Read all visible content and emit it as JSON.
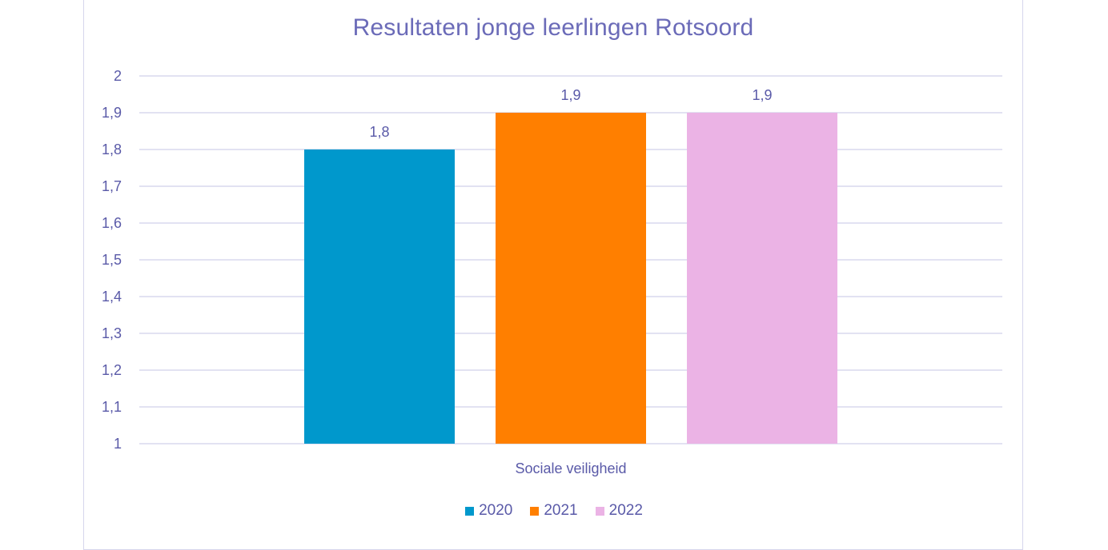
{
  "chart_data": {
    "type": "bar",
    "title": "Resultaten jonge leerlingen Rotsoord",
    "categories": [
      "Sociale veiligheid"
    ],
    "series": [
      {
        "name": "2020",
        "values": [
          1.8
        ],
        "label": "1,8",
        "color": "#0098CC"
      },
      {
        "name": "2021",
        "values": [
          1.9
        ],
        "label": "1,9",
        "color": "#FF7F00"
      },
      {
        "name": "2022",
        "values": [
          1.9
        ],
        "label": "1,9",
        "color": "#EBB3E5"
      }
    ],
    "ylim": [
      1,
      2
    ],
    "yticks": [
      1,
      1.1,
      1.2,
      1.3,
      1.4,
      1.5,
      1.6,
      1.7,
      1.8,
      1.9,
      2
    ],
    "ytick_labels": [
      "1",
      "1,1",
      "1,2",
      "1,3",
      "1,4",
      "1,5",
      "1,6",
      "1,7",
      "1,8",
      "1,9",
      "2"
    ],
    "xlabel": "",
    "ylabel": "",
    "grid": true,
    "legend_position": "bottom"
  }
}
